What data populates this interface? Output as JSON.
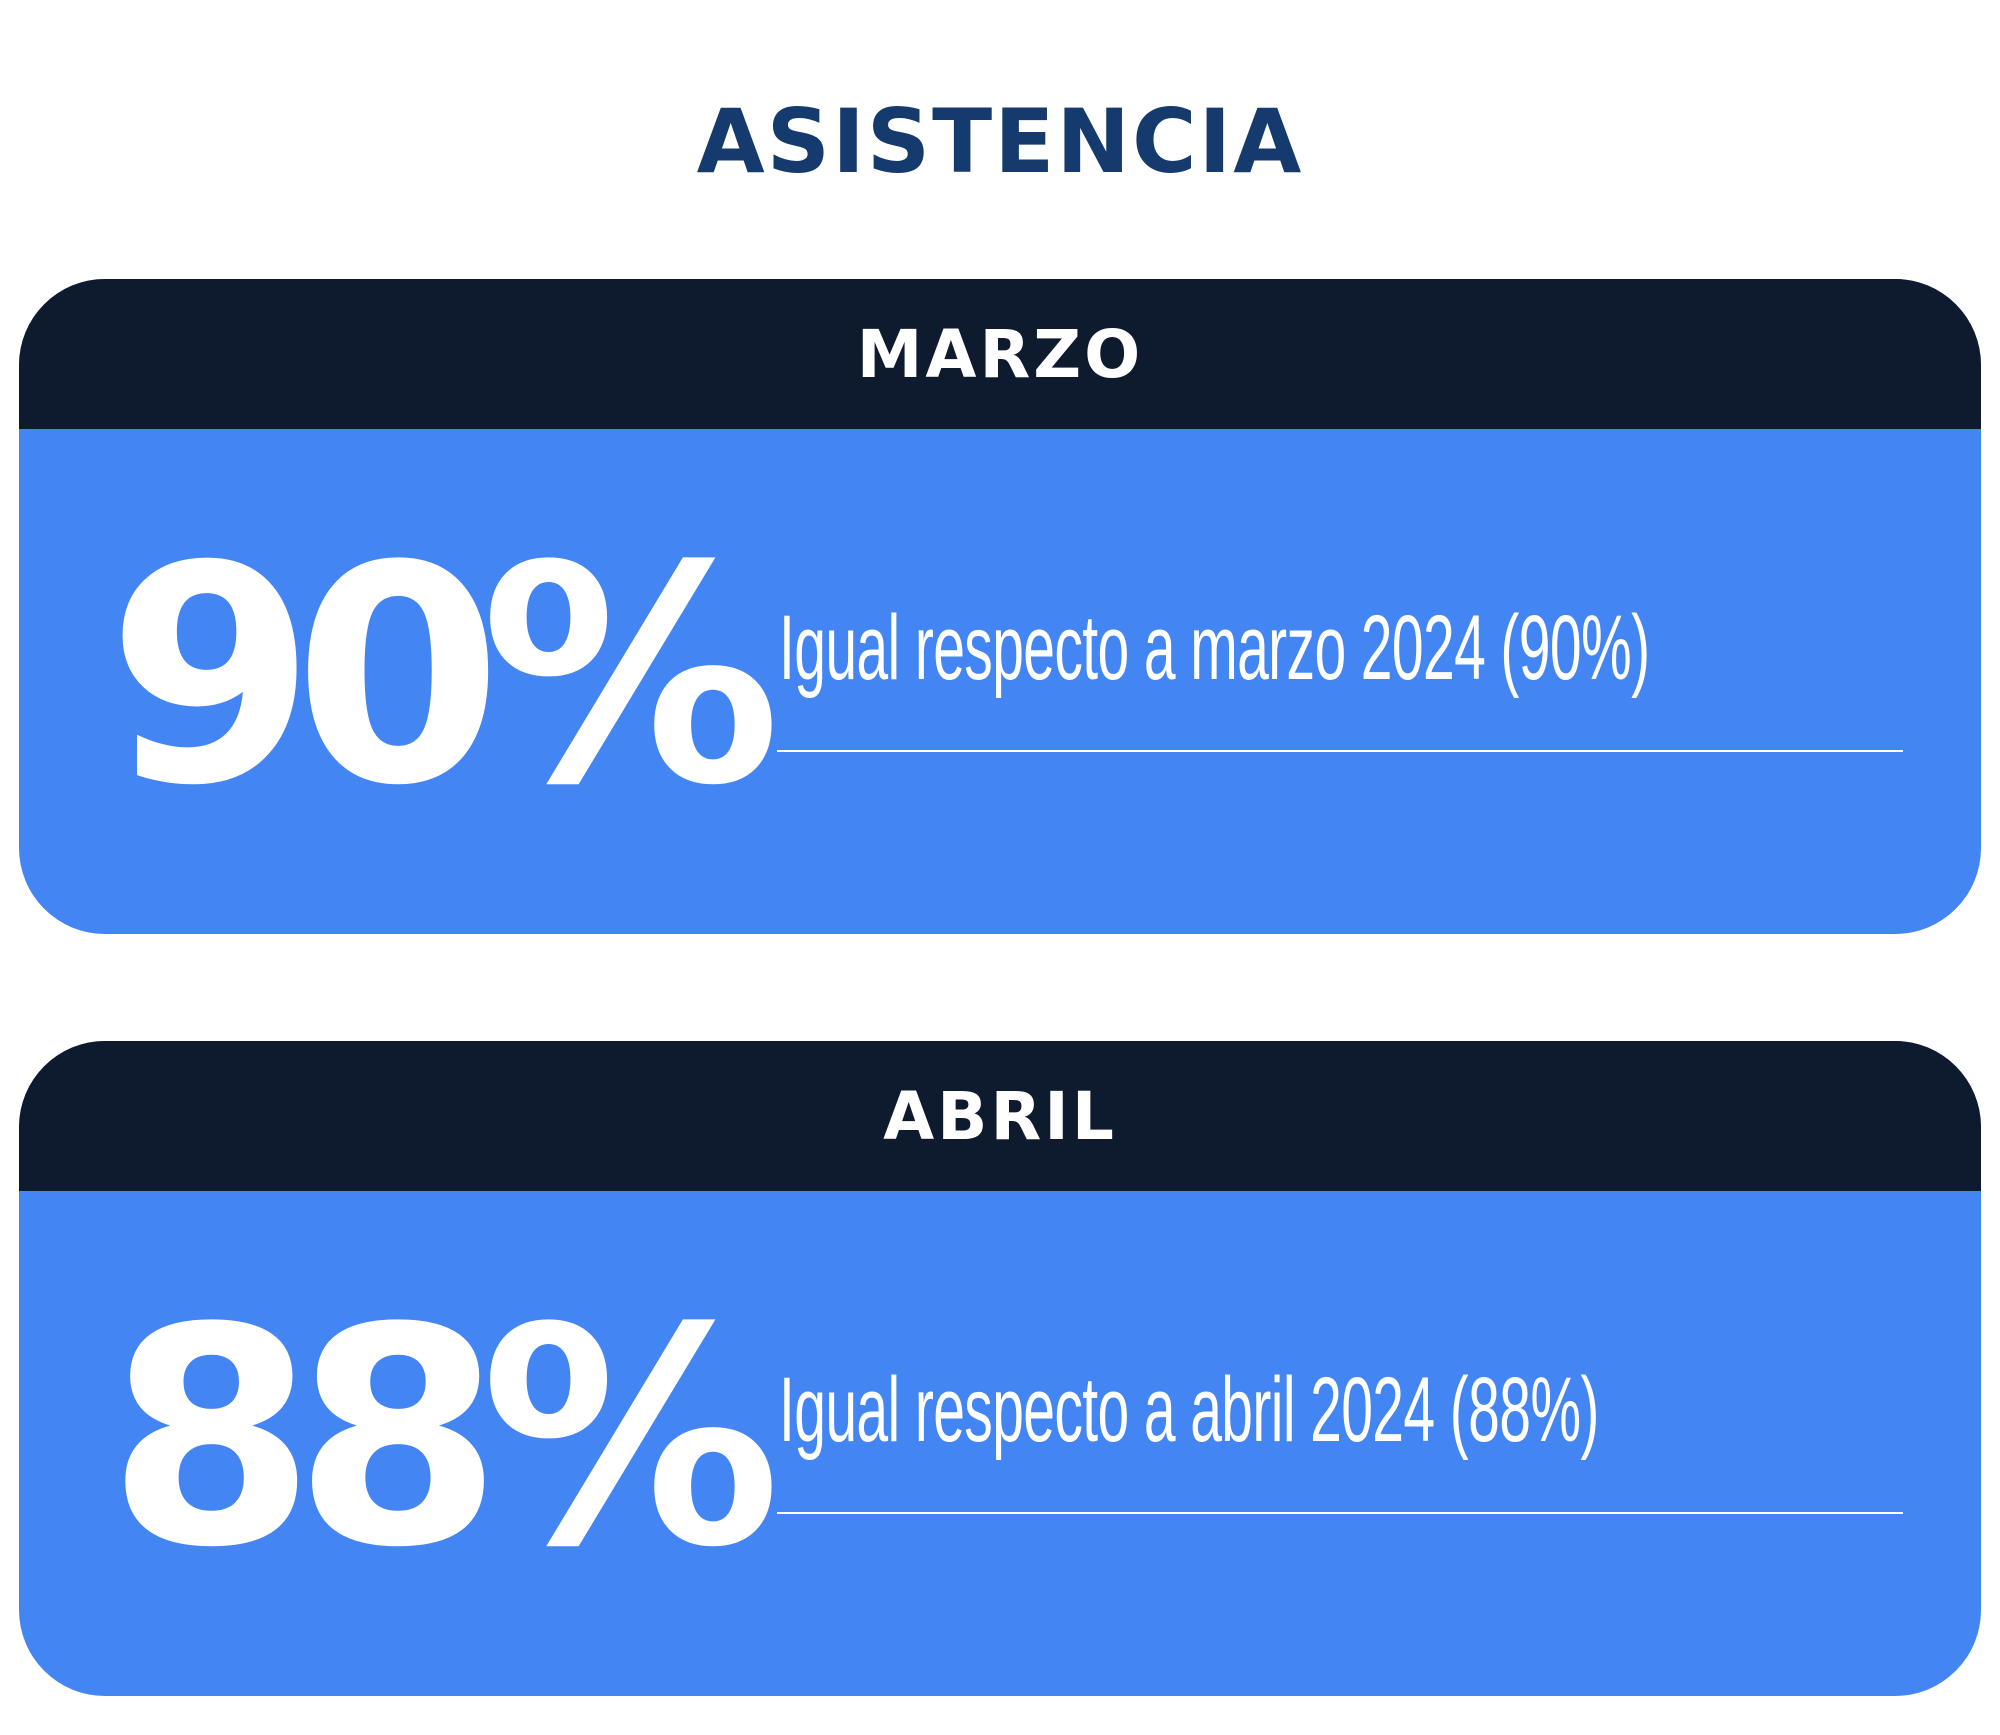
{
  "title": "ASISTENCIA",
  "cards": [
    {
      "month": "MARZO",
      "value": "90%",
      "comparison": "Igual respecto a marzo 2024 (90%)"
    },
    {
      "month": "ABRIL",
      "value": "88%",
      "comparison": "Igual respecto a abril 2024 (88%)"
    }
  ],
  "colors": {
    "title": "#143a6e",
    "header_background": "#0e1a2e",
    "card_background": "#4485f4",
    "text_on_card": "#ffffff"
  }
}
